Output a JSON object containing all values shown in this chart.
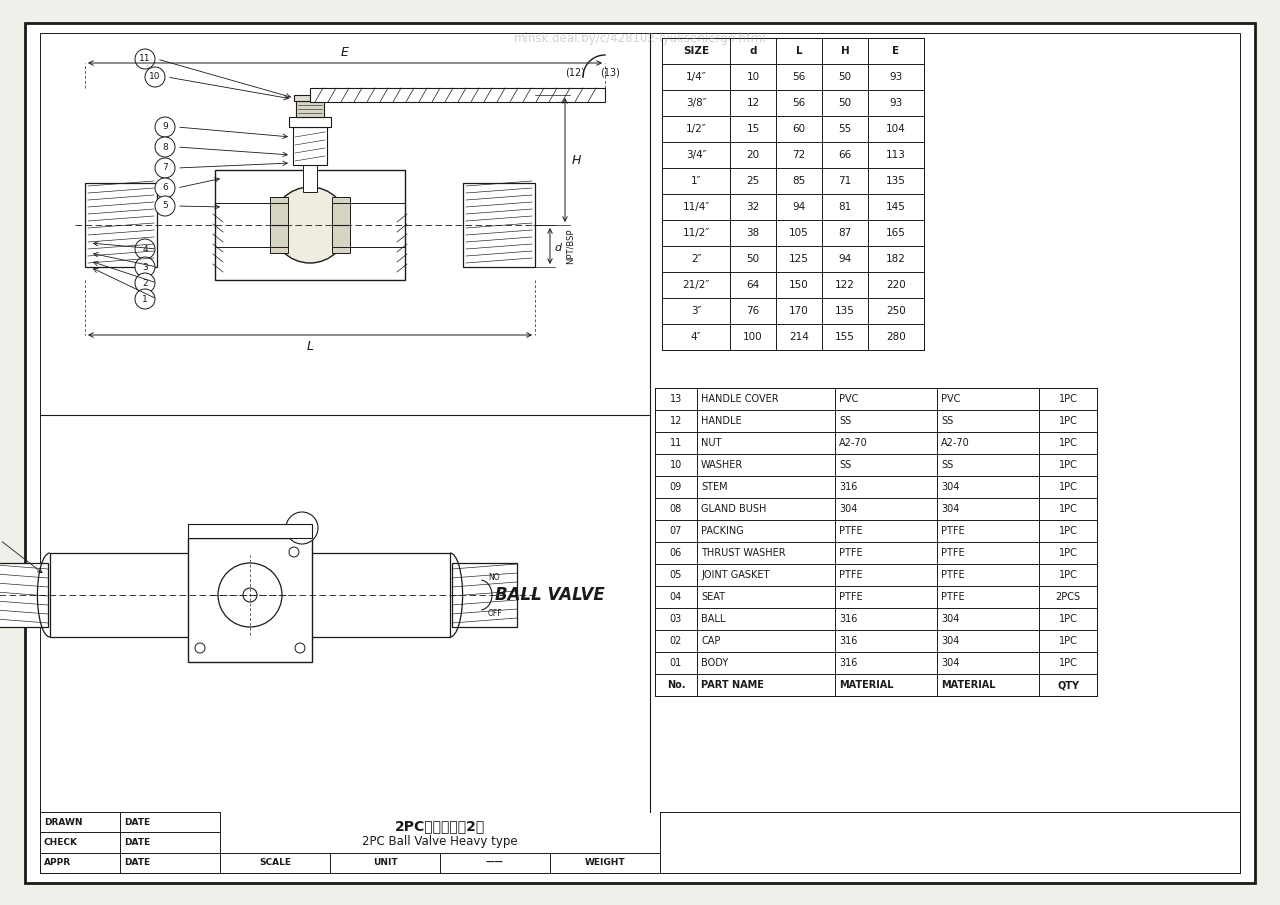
{
  "bg_color": "#f0f0eb",
  "line_color": "#1a1a1a",
  "size_table": {
    "headers": [
      "SIZE",
      "d",
      "L",
      "H",
      "E"
    ],
    "rows": [
      [
        "1/4″",
        "10",
        "56",
        "50",
        "93"
      ],
      [
        "3/8″",
        "12",
        "56",
        "50",
        "93"
      ],
      [
        "1/2″",
        "15",
        "60",
        "55",
        "104"
      ],
      [
        "3/4″",
        "20",
        "72",
        "66",
        "113"
      ],
      [
        "1″",
        "25",
        "85",
        "71",
        "135"
      ],
      [
        "11/4″",
        "32",
        "94",
        "81",
        "145"
      ],
      [
        "11/2″",
        "38",
        "105",
        "87",
        "165"
      ],
      [
        "2″",
        "50",
        "125",
        "94",
        "182"
      ],
      [
        "21/2″",
        "64",
        "150",
        "122",
        "220"
      ],
      [
        "3″",
        "76",
        "170",
        "135",
        "250"
      ],
      [
        "4″",
        "100",
        "214",
        "155",
        "280"
      ]
    ]
  },
  "parts_table": {
    "rows": [
      [
        "13",
        "HANDLE COVER",
        "PVC",
        "PVC",
        "1PC"
      ],
      [
        "12",
        "HANDLE",
        "SS",
        "SS",
        "1PC"
      ],
      [
        "11",
        "NUT",
        "A2-70",
        "A2-70",
        "1PC"
      ],
      [
        "10",
        "WASHER",
        "SS",
        "SS",
        "1PC"
      ],
      [
        "09",
        "STEM",
        "316",
        "304",
        "1PC"
      ],
      [
        "08",
        "GLAND BUSH",
        "304",
        "304",
        "1PC"
      ],
      [
        "07",
        "PACKING",
        "PTFE",
        "PTFE",
        "1PC"
      ],
      [
        "06",
        "THRUST WASHER",
        "PTFE",
        "PTFE",
        "1PC"
      ],
      [
        "05",
        "JOINT GASKET",
        "PTFE",
        "PTFE",
        "1PC"
      ],
      [
        "04",
        "SEAT",
        "PTFE",
        "PTFE",
        "2PCS"
      ],
      [
        "03",
        "BALL",
        "316",
        "304",
        "1PC"
      ],
      [
        "02",
        "CAP",
        "316",
        "304",
        "1PC"
      ],
      [
        "01",
        "BODY",
        "316",
        "304",
        "1PC"
      ],
      [
        "No.",
        "PART NAME",
        "MATERIAL",
        "MATERIAL",
        "QTY"
      ]
    ]
  },
  "title_zh": "2PC球阀（模具2）",
  "title_en": "2PC Ball Valve Heavy type",
  "watermark": "minsk.deal.by/c/428102-lyuksenlergo.html"
}
